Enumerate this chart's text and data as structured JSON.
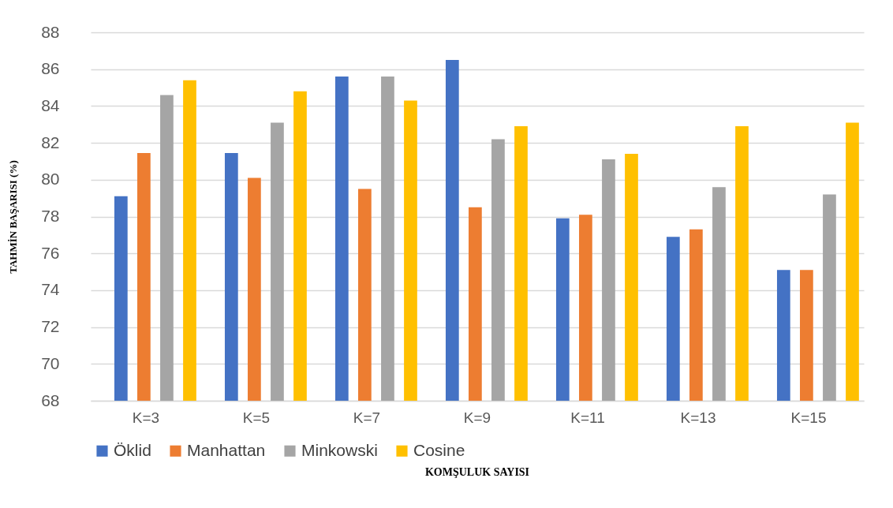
{
  "chart_data": {
    "type": "bar",
    "xlabel": "KOMŞULUK SAYISI",
    "ylabel": "TAHMİN BAŞARISI (%)",
    "categories": [
      "K=3",
      "K=5",
      "K=7",
      "K=9",
      "K=11",
      "K=13",
      "K=15"
    ],
    "series": [
      {
        "name": "Öklid",
        "color": "#4472c4",
        "values": [
          79.1,
          81.45,
          85.6,
          86.5,
          77.9,
          76.9,
          75.1
        ]
      },
      {
        "name": "Manhattan",
        "color": "#ed7d31",
        "values": [
          81.45,
          80.1,
          79.5,
          78.5,
          78.1,
          77.3,
          75.1
        ]
      },
      {
        "name": "Minkowski",
        "color": "#a5a5a5",
        "values": [
          84.6,
          83.1,
          85.6,
          82.2,
          81.1,
          79.6,
          79.2
        ]
      },
      {
        "name": "Cosine",
        "color": "#ffc000",
        "values": [
          85.4,
          84.8,
          84.3,
          82.9,
          81.4,
          82.9,
          83.1
        ]
      }
    ],
    "ylim": [
      68,
      88
    ],
    "yticks": [
      68,
      70,
      72,
      74,
      76,
      78,
      80,
      82,
      84,
      86,
      88
    ],
    "grid": "y",
    "legend": "bottom"
  }
}
